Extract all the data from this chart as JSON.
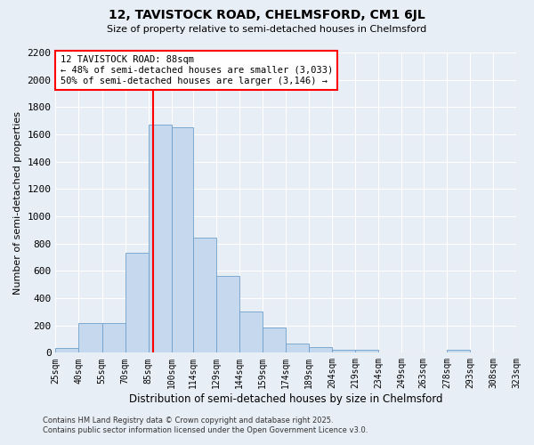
{
  "title": "12, TAVISTOCK ROAD, CHELMSFORD, CM1 6JL",
  "subtitle": "Size of property relative to semi-detached houses in Chelmsford",
  "xlabel": "Distribution of semi-detached houses by size in Chelmsford",
  "ylabel": "Number of semi-detached properties",
  "bar_color": "#c5d8ee",
  "bar_edge_color": "#6fa0cc",
  "background_color": "#e8eef5",
  "grid_color": "#ffffff",
  "red_line_x": 88,
  "annotation_title": "12 TAVISTOCK ROAD: 88sqm",
  "annotation_line2": "← 48% of semi-detached houses are smaller (3,033)",
  "annotation_line3": "50% of semi-detached houses are larger (3,146) →",
  "footer1": "Contains HM Land Registry data © Crown copyright and database right 2025.",
  "footer2": "Contains public sector information licensed under the Open Government Licence v3.0.",
  "bin_edges": [
    25,
    40,
    55,
    70,
    85,
    100,
    114,
    129,
    144,
    159,
    174,
    189,
    204,
    219,
    234,
    249,
    263,
    278,
    293,
    308,
    323
  ],
  "bar_heights": [
    35,
    220,
    220,
    730,
    1670,
    1650,
    845,
    560,
    300,
    185,
    70,
    40,
    25,
    20,
    0,
    0,
    0,
    20,
    0,
    0
  ],
  "ylim": [
    0,
    2200
  ],
  "yticks": [
    0,
    200,
    400,
    600,
    800,
    1000,
    1200,
    1400,
    1600,
    1800,
    2000,
    2200
  ],
  "xtick_labels": [
    "25sqm",
    "40sqm",
    "55sqm",
    "70sqm",
    "85sqm",
    "100sqm",
    "114sqm",
    "129sqm",
    "144sqm",
    "159sqm",
    "174sqm",
    "189sqm",
    "204sqm",
    "219sqm",
    "234sqm",
    "249sqm",
    "263sqm",
    "278sqm",
    "293sqm",
    "308sqm",
    "323sqm"
  ]
}
